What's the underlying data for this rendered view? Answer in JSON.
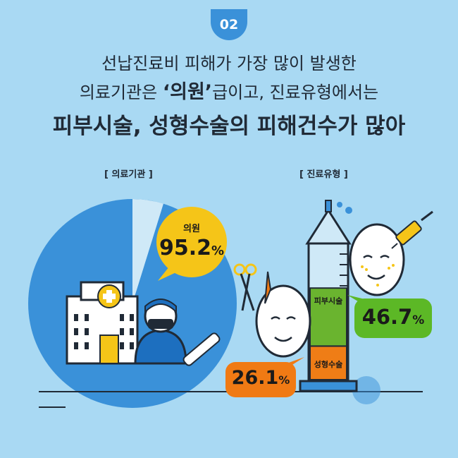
{
  "badge": "02",
  "headline": {
    "line1": "선납진료비 피해가 가장 많이 발생한",
    "line2_pre": "의료기관은 ",
    "line2_em": "‘의원’",
    "line2_post": "급이고, 진료유형에서는",
    "line3": "피부시술, 성형수술의 피해건수가 많아"
  },
  "colors": {
    "background": "#a9d9f3",
    "pie_main": "#3a91d9",
    "pie_rest": "#cfe9f7",
    "callout_yellow": "#f5c518",
    "callout_green": "#5cb826",
    "callout_orange": "#f07a14",
    "syringe_green": "#6ab42f",
    "syringe_orange": "#ef7d16"
  },
  "chart_data": [
    {
      "type": "pie",
      "title": "[ 의료기관 ]",
      "slices": [
        {
          "label": "의원",
          "value": 95.2,
          "value_text": "95.2",
          "unit": "%"
        },
        {
          "label": "",
          "value": 4.8
        }
      ]
    },
    {
      "type": "bar",
      "title": "[ 진료유형 ]",
      "categories": [
        "피부시술",
        "성형수술"
      ],
      "values": [
        46.7,
        26.1
      ],
      "value_texts": [
        "46.7",
        "26.1"
      ],
      "unit": "%"
    }
  ]
}
